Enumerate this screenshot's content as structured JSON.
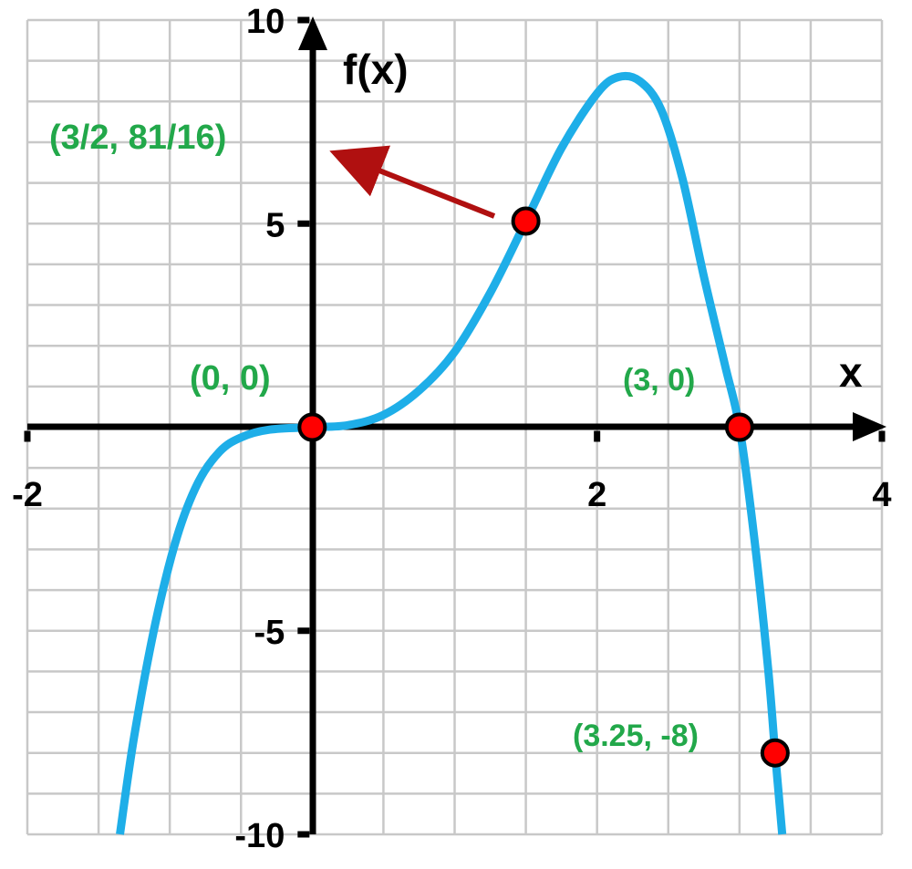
{
  "chart_data": {
    "type": "line",
    "xlabel": "x",
    "ylabel": "f(x)",
    "xlim": [
      -2,
      4
    ],
    "ylim": [
      -10,
      10
    ],
    "grid": true,
    "x_ticks": [
      {
        "value": -2,
        "label": "-2"
      },
      {
        "value": 2,
        "label": "2"
      },
      {
        "value": 4,
        "label": "4"
      }
    ],
    "y_ticks": [
      {
        "value": 10,
        "label": "10"
      },
      {
        "value": 5,
        "label": "5"
      },
      {
        "value": -5,
        "label": "-5"
      },
      {
        "value": -10,
        "label": "-10"
      }
    ],
    "curve": {
      "color": "#1eaee8",
      "points": [
        {
          "x": -1.35,
          "y": -10.0
        },
        {
          "x": -1.25,
          "y": -7.6
        },
        {
          "x": -1.1,
          "y": -4.8
        },
        {
          "x": -0.95,
          "y": -2.7
        },
        {
          "x": -0.8,
          "y": -1.35
        },
        {
          "x": -0.65,
          "y": -0.6
        },
        {
          "x": -0.5,
          "y": -0.25
        },
        {
          "x": -0.3,
          "y": -0.06
        },
        {
          "x": 0.0,
          "y": 0.0
        },
        {
          "x": 0.25,
          "y": 0.05
        },
        {
          "x": 0.5,
          "y": 0.3
        },
        {
          "x": 0.75,
          "y": 0.9
        },
        {
          "x": 1.0,
          "y": 1.85
        },
        {
          "x": 1.25,
          "y": 3.3
        },
        {
          "x": 1.5,
          "y": 5.06
        },
        {
          "x": 1.75,
          "y": 6.85
        },
        {
          "x": 2.0,
          "y": 8.2
        },
        {
          "x": 2.15,
          "y": 8.6
        },
        {
          "x": 2.3,
          "y": 8.5
        },
        {
          "x": 2.45,
          "y": 7.8
        },
        {
          "x": 2.6,
          "y": 6.1
        },
        {
          "x": 2.75,
          "y": 3.7
        },
        {
          "x": 2.9,
          "y": 1.5
        },
        {
          "x": 3.0,
          "y": 0.0
        },
        {
          "x": 3.1,
          "y": -2.6
        },
        {
          "x": 3.2,
          "y": -5.9
        },
        {
          "x": 3.25,
          "y": -8.0
        },
        {
          "x": 3.3,
          "y": -10.0
        }
      ]
    },
    "marked_points": [
      {
        "x": 0,
        "y": 0,
        "label": "(0, 0)"
      },
      {
        "x": 1.5,
        "y": 5.0625,
        "label": "(3/2, 81/16)"
      },
      {
        "x": 3,
        "y": 0,
        "label": "(3, 0)"
      },
      {
        "x": 3.25,
        "y": -8,
        "label": "(3.25, -8)"
      }
    ],
    "annotation_color": "#22a84a",
    "point_color": "#ff0000",
    "arrow_color": "#b01010"
  }
}
